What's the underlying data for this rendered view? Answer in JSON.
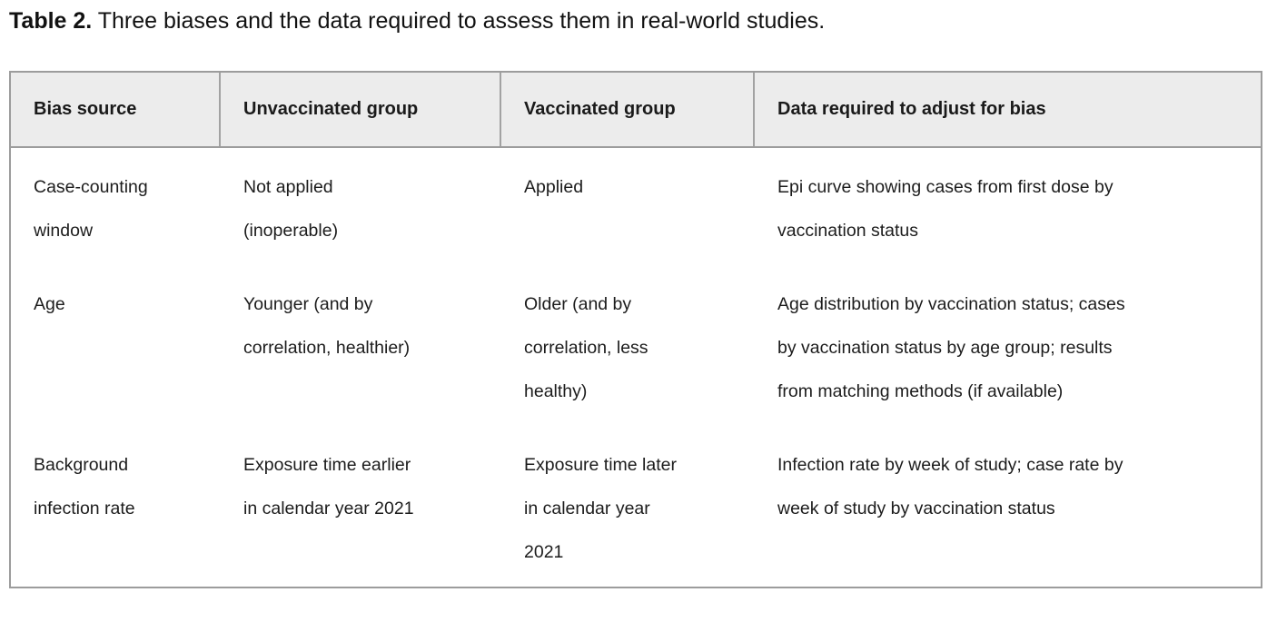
{
  "caption": {
    "label": "Table 2.",
    "text": "Three biases and the data required to assess them in real-world studies."
  },
  "colors": {
    "header_background": "#ececec",
    "table_border": "#9c9c9c",
    "text": "#1b1b1b",
    "page_background": "#ffffff"
  },
  "table": {
    "headers": [
      "Bias source",
      "Unvaccinated group",
      "Vaccinated group",
      "Data required to adjust for bias"
    ],
    "rows": [
      {
        "cells": [
          [
            "Case-counting",
            "window"
          ],
          [
            "Not applied",
            "(inoperable)"
          ],
          [
            "Applied"
          ],
          [
            "Epi curve showing cases from first dose by",
            "vaccination status"
          ]
        ]
      },
      {
        "cells": [
          [
            "Age"
          ],
          [
            "Younger (and by",
            "correlation, healthier)"
          ],
          [
            "Older (and by",
            "correlation, less",
            "healthy)"
          ],
          [
            "Age distribution by vaccination status; cases",
            "by vaccination status by age group; results",
            "from matching methods (if available)"
          ]
        ]
      },
      {
        "cells": [
          [
            "Background",
            "infection rate"
          ],
          [
            "Exposure time earlier",
            "in calendar year 2021"
          ],
          [
            "Exposure time later",
            "in calendar year",
            "2021"
          ],
          [
            "Infection rate by week of study; case rate by",
            "week of study by vaccination status"
          ]
        ]
      }
    ]
  }
}
